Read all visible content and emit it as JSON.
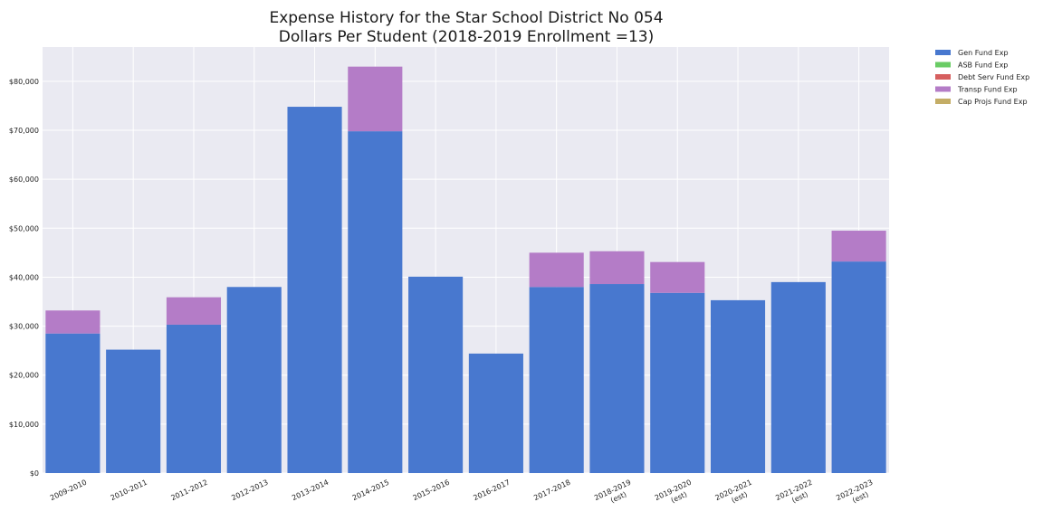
{
  "chart_data": {
    "type": "bar",
    "stacked": true,
    "title": "Expense History for the Star School District No 054",
    "subtitle": "Dollars Per Student (2018-2019 Enrollment =13)",
    "xlabel": "",
    "ylabel": "",
    "ylim": [
      0,
      87000
    ],
    "y_ticks": [
      0,
      10000,
      20000,
      30000,
      40000,
      50000,
      60000,
      70000,
      80000
    ],
    "y_tick_labels": [
      "$0",
      "$10,000",
      "$20,000",
      "$30,000",
      "$40,000",
      "$50,000",
      "$60,000",
      "$70,000",
      "$80,000"
    ],
    "grid": true,
    "legend_position": "outside-top-right",
    "categories": [
      [
        "2009-2010"
      ],
      [
        "2010-2011"
      ],
      [
        "2011-2012"
      ],
      [
        "2012-2013"
      ],
      [
        "2013-2014"
      ],
      [
        "2014-2015"
      ],
      [
        "2015-2016"
      ],
      [
        "2016-2017"
      ],
      [
        "2017-2018"
      ],
      [
        "2018-2019",
        "(est)"
      ],
      [
        "2019-2020",
        "(est)"
      ],
      [
        "2020-2021",
        "(est)"
      ],
      [
        "2021-2022",
        "(est)"
      ],
      [
        "2022-2023",
        "(est)"
      ]
    ],
    "series": [
      {
        "name": "Gen Fund Exp",
        "color": "#4878cf",
        "values": [
          28500,
          25200,
          30300,
          38000,
          74800,
          69800,
          40100,
          24400,
          38000,
          38600,
          36800,
          35300,
          39000,
          43200
        ]
      },
      {
        "name": "ASB Fund Exp",
        "color": "#6acc65",
        "values": [
          0,
          0,
          0,
          0,
          0,
          0,
          0,
          0,
          0,
          0,
          0,
          0,
          0,
          0
        ]
      },
      {
        "name": "Debt Serv Fund Exp",
        "color": "#d65f5f",
        "values": [
          0,
          0,
          0,
          0,
          0,
          0,
          0,
          0,
          0,
          0,
          0,
          0,
          0,
          0
        ]
      },
      {
        "name": "Transp Fund Exp",
        "color": "#b47cc7",
        "values": [
          4700,
          0,
          5600,
          0,
          0,
          13200,
          0,
          0,
          7000,
          6700,
          6300,
          0,
          0,
          6300
        ]
      },
      {
        "name": "Cap Projs Fund Exp",
        "color": "#c4ad66",
        "values": [
          0,
          0,
          0,
          0,
          0,
          0,
          0,
          0,
          0,
          0,
          0,
          0,
          0,
          0
        ]
      }
    ]
  }
}
